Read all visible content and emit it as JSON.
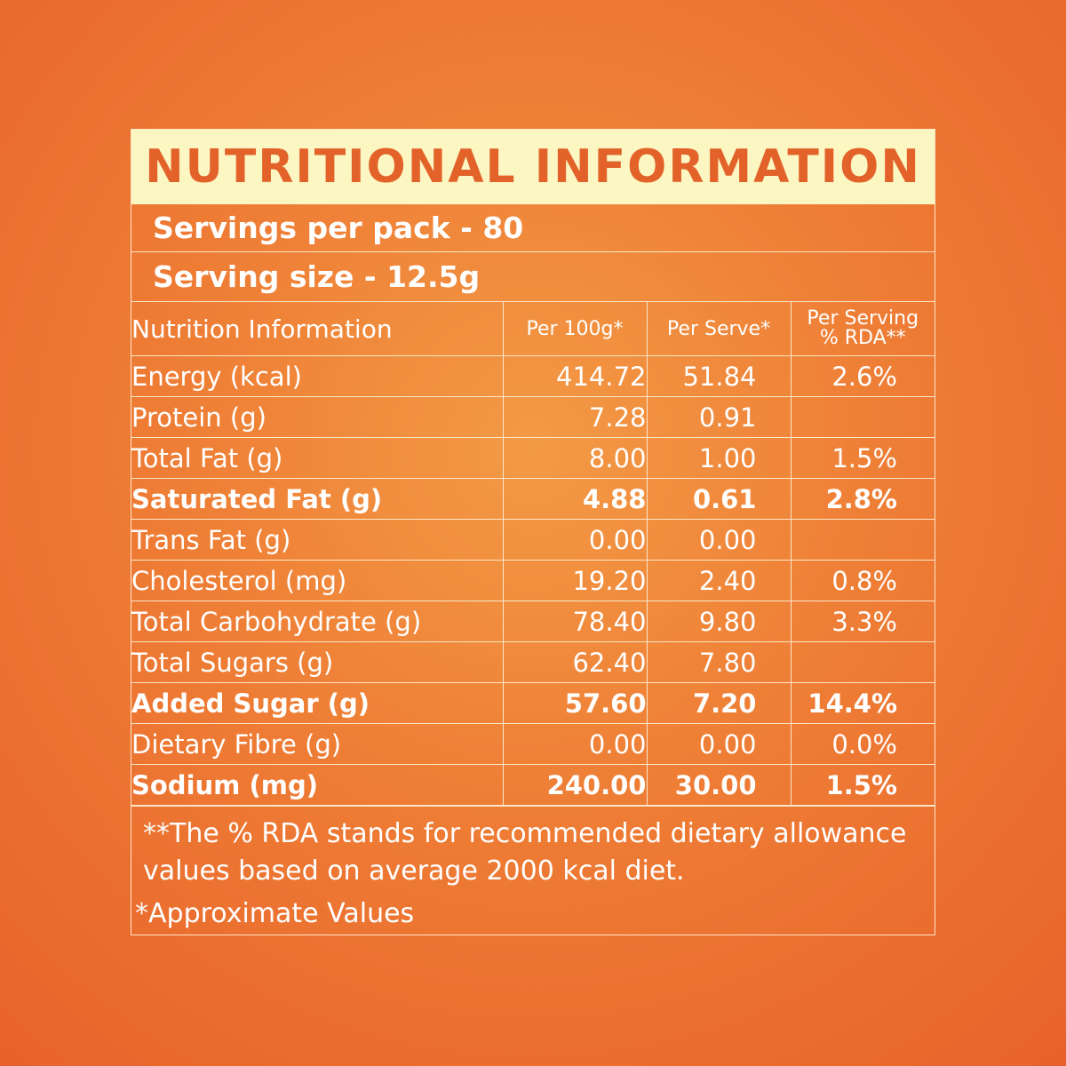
{
  "title": "NUTRITIONAL INFORMATION",
  "servings_per_pack": "Servings per pack - 80",
  "serving_size": "Serving size - 12.5g",
  "table": {
    "headers": {
      "name": "Nutrition Information",
      "per100": "Per 100g*",
      "perserve": "Per Serve*",
      "rda_line1": "Per Serving",
      "rda_line2": "% RDA**"
    },
    "rows": [
      {
        "name": "Energy (kcal)",
        "per100": "414.72",
        "perserve": "51.84",
        "rda": "2.6%",
        "bold": false
      },
      {
        "name": "Protein (g)",
        "per100": "7.28",
        "perserve": "0.91",
        "rda": "",
        "bold": false
      },
      {
        "name": "Total Fat (g)",
        "per100": "8.00",
        "perserve": "1.00",
        "rda": "1.5%",
        "bold": false
      },
      {
        "name": "Saturated Fat (g)",
        "per100": "4.88",
        "perserve": "0.61",
        "rda": "2.8%",
        "bold": true
      },
      {
        "name": "Trans Fat (g)",
        "per100": "0.00",
        "perserve": "0.00",
        "rda": "",
        "bold": false
      },
      {
        "name": "Cholesterol (mg)",
        "per100": "19.20",
        "perserve": "2.40",
        "rda": "0.8%",
        "bold": false
      },
      {
        "name": "Total Carbohydrate (g)",
        "per100": "78.40",
        "perserve": "9.80",
        "rda": "3.3%",
        "bold": false
      },
      {
        "name": "Total Sugars (g)",
        "per100": "62.40",
        "perserve": "7.80",
        "rda": "",
        "bold": false
      },
      {
        "name": "Added  Sugar (g)",
        "per100": "57.60",
        "perserve": "7.20",
        "rda": "14.4%",
        "bold": true
      },
      {
        "name": "Dietary Fibre (g)",
        "per100": "0.00",
        "perserve": "0.00",
        "rda": "0.0%",
        "bold": false
      },
      {
        "name": "Sodium (mg)",
        "per100": "240.00",
        "perserve": "30.00",
        "rda": "1.5%",
        "bold": true
      }
    ]
  },
  "footnote_rda_line1": "**The % RDA stands for recommended dietary allowance",
  "footnote_rda_line2": "values based on average 2000 kcal diet.",
  "footnote_approx": "*Approximate Values",
  "colors": {
    "background": "#ee7d35",
    "title_bar": "#fbf6c2",
    "title_text": "#e2622a",
    "text": "#ffffff",
    "lines": "#fbe6c8"
  }
}
